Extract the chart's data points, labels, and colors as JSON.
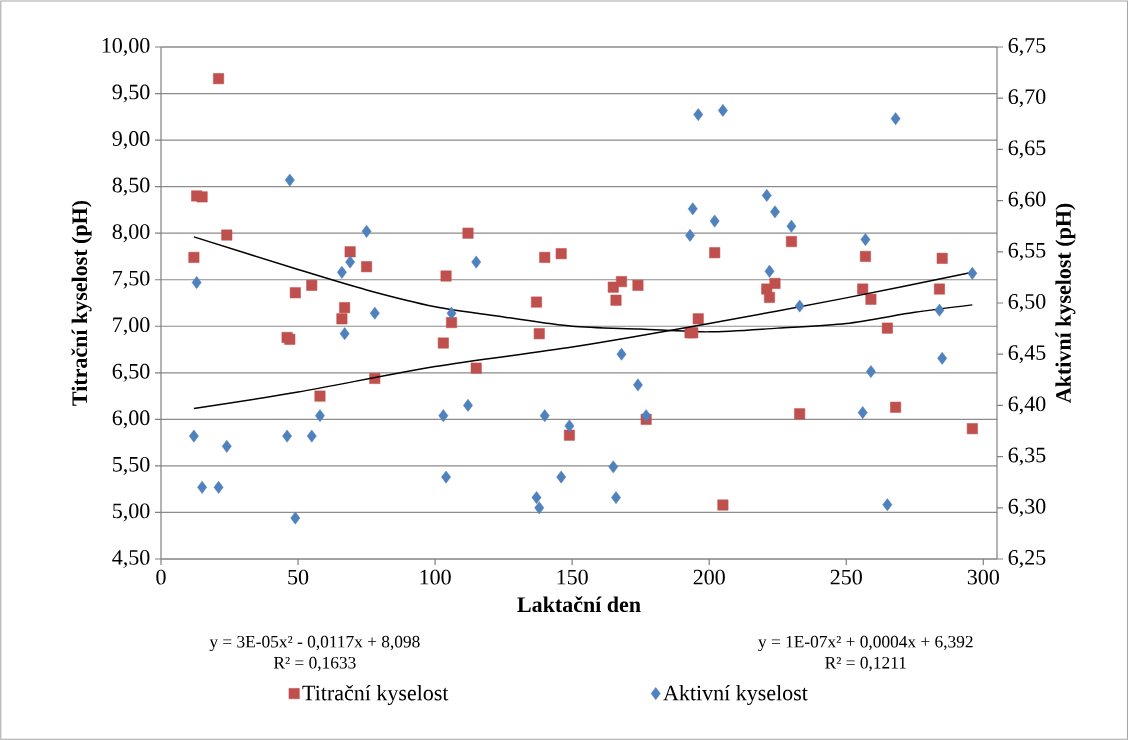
{
  "chart_data": {
    "type": "scatter",
    "xlabel": "Laktační den",
    "ylabel": "Titrační kyselost (pH)",
    "y2label": "Aktivní kyselost (pH)",
    "xlim": [
      0,
      305
    ],
    "xticks": [
      0,
      50,
      100,
      150,
      200,
      250,
      300
    ],
    "ylim": [
      4.5,
      10
    ],
    "yticks": [
      {
        "value": 4.5,
        "label": "4,50"
      },
      {
        "value": 5,
        "label": "5,00"
      },
      {
        "value": 5.5,
        "label": "5,50"
      },
      {
        "value": 6,
        "label": "6,00"
      },
      {
        "value": 6.5,
        "label": "6,50"
      },
      {
        "value": 7,
        "label": "7,00"
      },
      {
        "value": 7.5,
        "label": "7,50"
      },
      {
        "value": 8,
        "label": "8,00"
      },
      {
        "value": 8.5,
        "label": "8,50"
      },
      {
        "value": 9,
        "label": "9,00"
      },
      {
        "value": 9.5,
        "label": "9,50"
      },
      {
        "value": 10,
        "label": "10,00"
      }
    ],
    "y2lim": [
      6.25,
      6.75
    ],
    "y2ticks": [
      {
        "value": 6.25,
        "label": "6,25"
      },
      {
        "value": 6.3,
        "label": "6,30"
      },
      {
        "value": 6.35,
        "label": "6,35"
      },
      {
        "value": 6.4,
        "label": "6,40"
      },
      {
        "value": 6.45,
        "label": "6,45"
      },
      {
        "value": 6.5,
        "label": "6,50"
      },
      {
        "value": 6.55,
        "label": "6,55"
      },
      {
        "value": 6.6,
        "label": "6,60"
      },
      {
        "value": 6.65,
        "label": "6,65"
      },
      {
        "value": 6.7,
        "label": "6,70"
      },
      {
        "value": 6.75,
        "label": "6,75"
      }
    ],
    "grid": "y",
    "legend": "bottom",
    "annotations": [
      "y = 3E-05x² - 0,0117x + 8,098",
      "R² = 0,1633",
      "y = 1E-07x² + 0,0004x + 6,392",
      "R² = 0,1211"
    ],
    "series": [
      {
        "name": "Titrační kyselost",
        "marker": "square",
        "color": "#c0504d",
        "x": [
          12,
          13,
          15,
          21,
          24,
          46,
          47,
          49,
          55,
          58,
          66,
          67,
          69,
          75,
          78,
          103,
          104,
          106,
          112,
          115,
          137,
          138,
          140,
          146,
          149,
          165,
          166,
          168,
          174,
          177,
          193,
          194,
          196,
          202,
          205,
          221,
          222,
          224,
          230,
          233,
          256,
          257,
          259,
          265,
          268,
          284,
          285,
          296
        ],
        "values": [
          7.74,
          8.4,
          8.39,
          9.66,
          7.98,
          6.88,
          6.86,
          7.36,
          7.44,
          6.25,
          7.08,
          7.2,
          7.8,
          7.64,
          6.44,
          6.82,
          7.54,
          7.04,
          8.0,
          6.55,
          7.26,
          6.92,
          7.74,
          7.78,
          5.83,
          7.42,
          7.28,
          7.48,
          7.44,
          6.0,
          6.93,
          6.93,
          7.08,
          7.79,
          5.08,
          7.4,
          7.31,
          7.46,
          7.91,
          6.06,
          7.4,
          7.75,
          7.29,
          6.98,
          6.13,
          7.4,
          7.73,
          5.9
        ]
      },
      {
        "name": "Aktivní kyselost",
        "marker": "diamond",
        "axis": "y2",
        "color": "#4f81bd",
        "x": [
          12,
          13,
          15,
          21,
          24,
          46,
          47,
          49,
          55,
          58,
          66,
          67,
          69,
          75,
          78,
          103,
          104,
          106,
          112,
          115,
          137,
          138,
          140,
          146,
          149,
          165,
          166,
          168,
          174,
          177,
          193,
          194,
          196,
          202,
          205,
          221,
          222,
          224,
          230,
          233,
          256,
          257,
          259,
          265,
          268,
          284,
          285,
          296
        ],
        "values": [
          6.37,
          6.52,
          6.32,
          6.32,
          6.36,
          6.37,
          6.62,
          6.29,
          6.37,
          6.39,
          6.53,
          6.47,
          6.54,
          6.57,
          6.49,
          6.39,
          6.33,
          6.49,
          6.4,
          6.54,
          6.31,
          6.3,
          6.39,
          6.33,
          6.38,
          6.34,
          6.31,
          6.45,
          6.42,
          6.39,
          6.566,
          6.592,
          6.684,
          6.58,
          6.688,
          6.605,
          6.531,
          6.589,
          6.575,
          6.497,
          6.393,
          6.562,
          6.433,
          6.303,
          6.68,
          6.493,
          6.446,
          6.529
        ]
      },
      {
        "type": "line",
        "marker": "none",
        "color": "#000000",
        "x": [
          12,
          50,
          75,
          100,
          125,
          150,
          175,
          200,
          225,
          250,
          275,
          296
        ],
        "values": [
          7.96,
          7.61,
          7.39,
          7.21,
          7.1,
          7.0,
          6.97,
          6.94,
          6.98,
          7.03,
          7.15,
          7.23
        ]
      },
      {
        "type": "line",
        "marker": "none",
        "axis": "y2",
        "color": "#000000",
        "x": [
          12,
          50,
          100,
          150,
          200,
          250,
          296
        ],
        "values": [
          6.397,
          6.413,
          6.438,
          6.457,
          6.48,
          6.505,
          6.53
        ]
      }
    ]
  }
}
